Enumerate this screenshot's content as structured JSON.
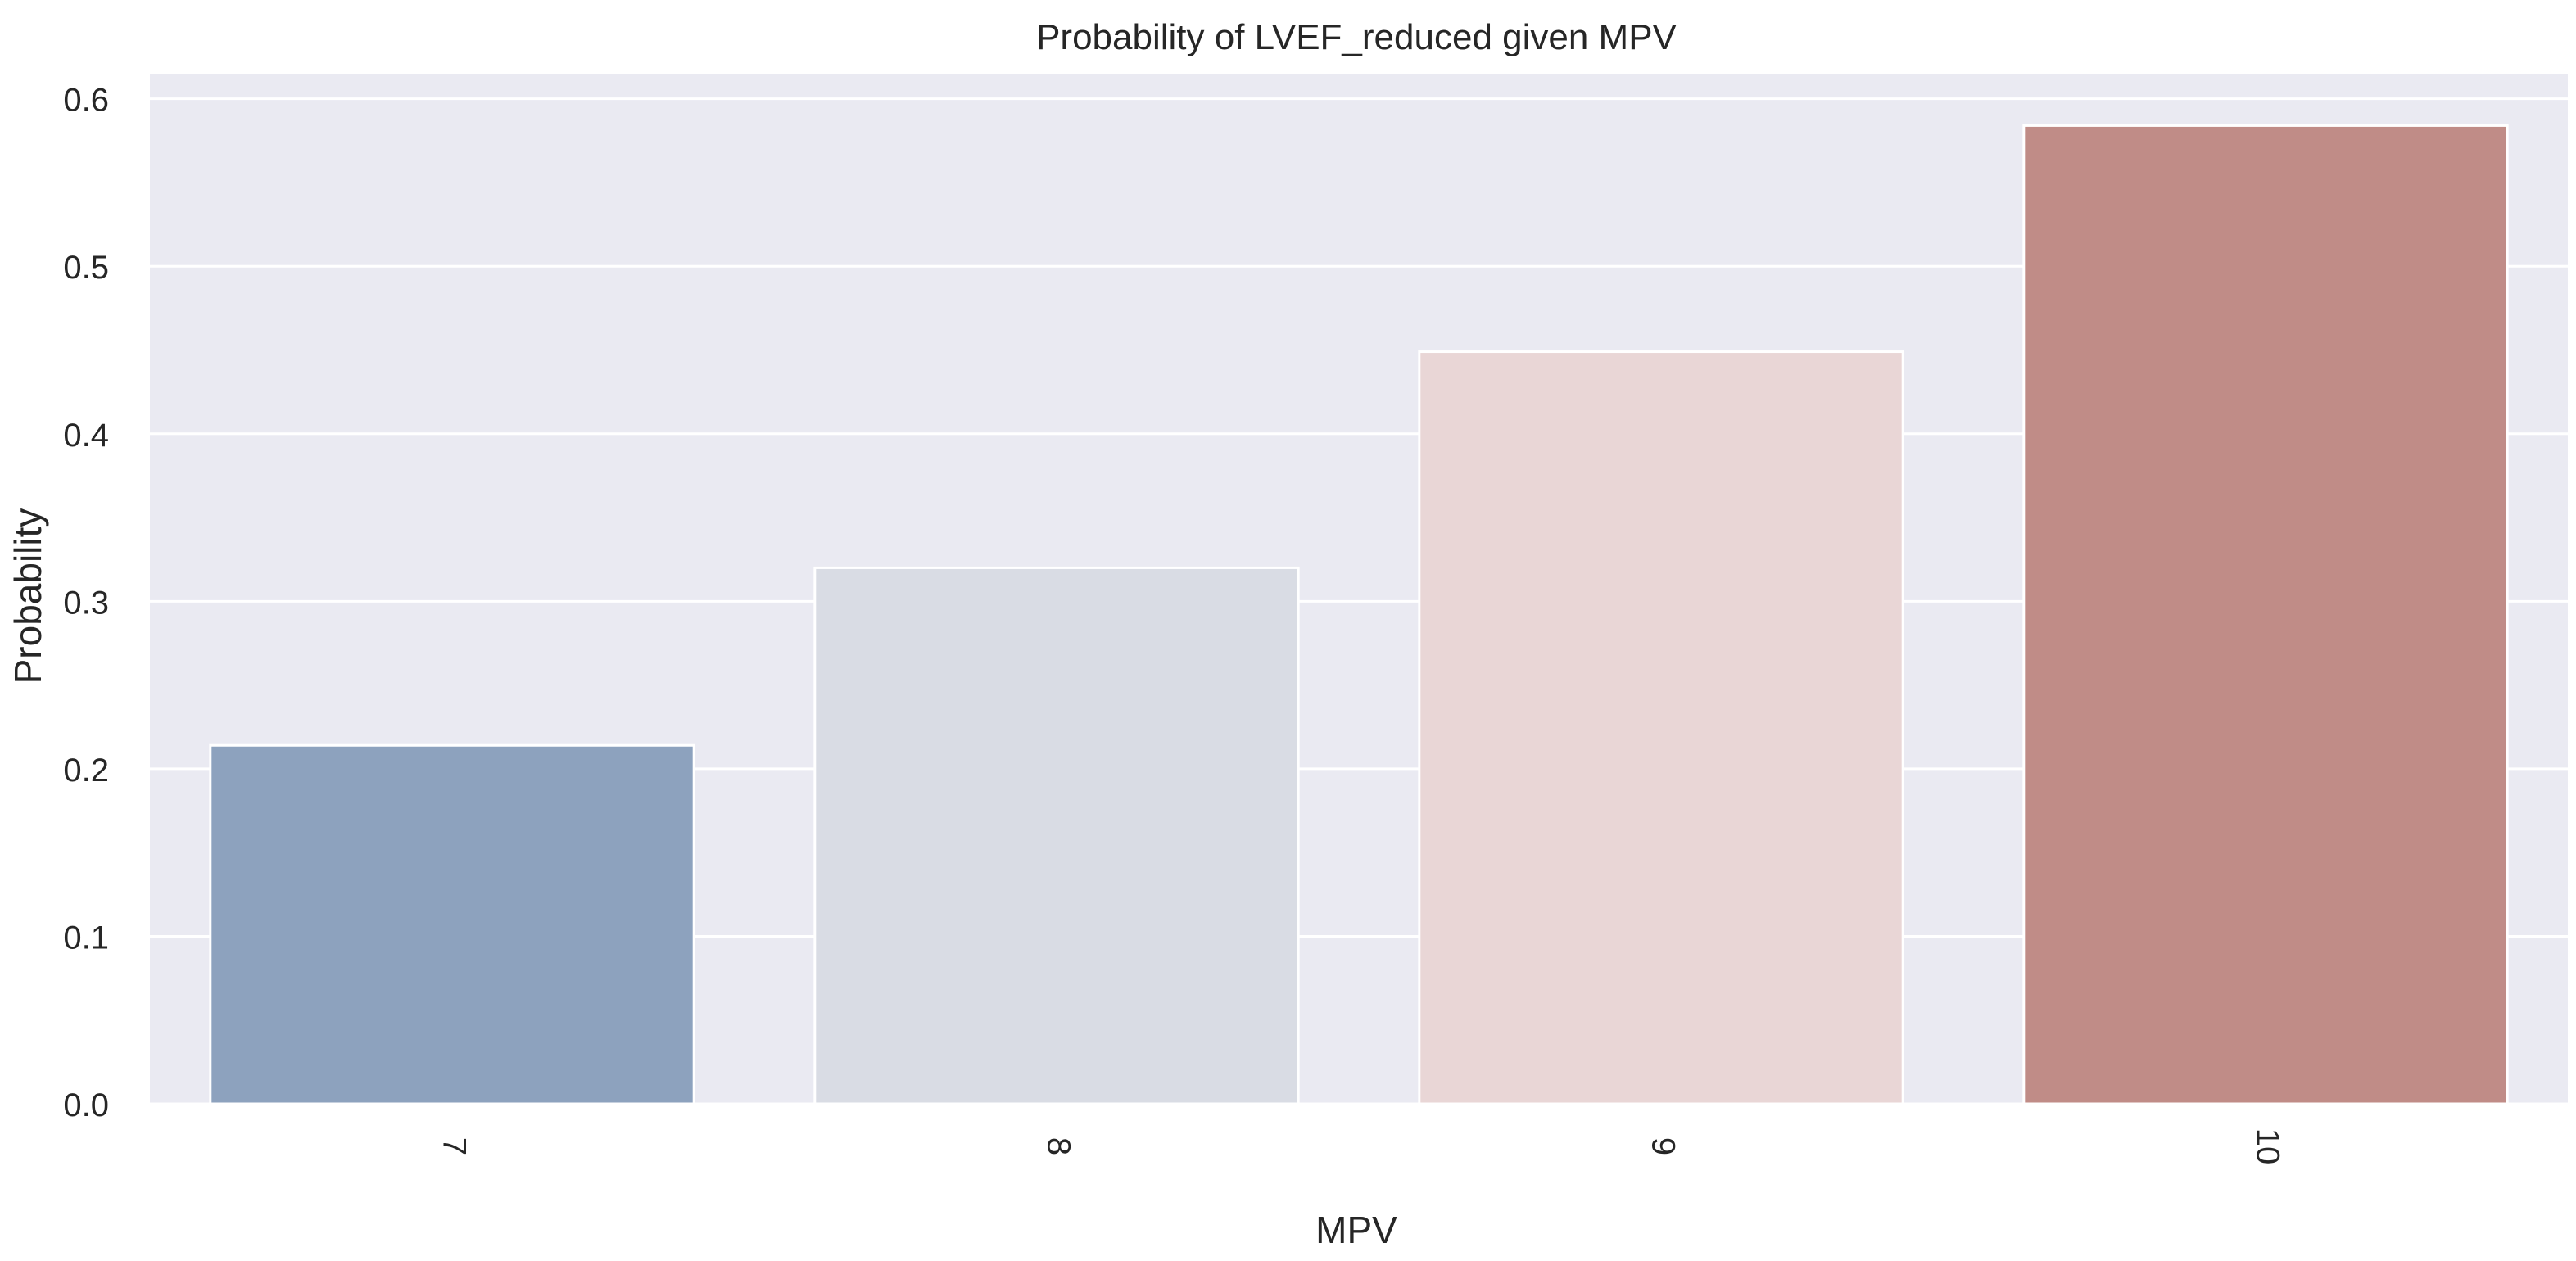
{
  "chart_data": {
    "type": "bar",
    "title": "Probability of LVEF_reduced given MPV",
    "xlabel": "MPV",
    "ylabel": "Probability",
    "categories": [
      "7",
      "8",
      "9",
      "10"
    ],
    "values": [
      0.214,
      0.32,
      0.449,
      0.584
    ],
    "ylim": [
      0,
      0.615
    ],
    "yticks": [
      "0.0",
      "0.1",
      "0.2",
      "0.3",
      "0.4",
      "0.5",
      "0.6"
    ],
    "grid": true,
    "x_tick_rotation": "vertical",
    "colors": [
      "#8DA2BE",
      "#D9DCE4",
      "#E9D6D6",
      "#C08C87"
    ],
    "background": "#EAEAF2"
  }
}
